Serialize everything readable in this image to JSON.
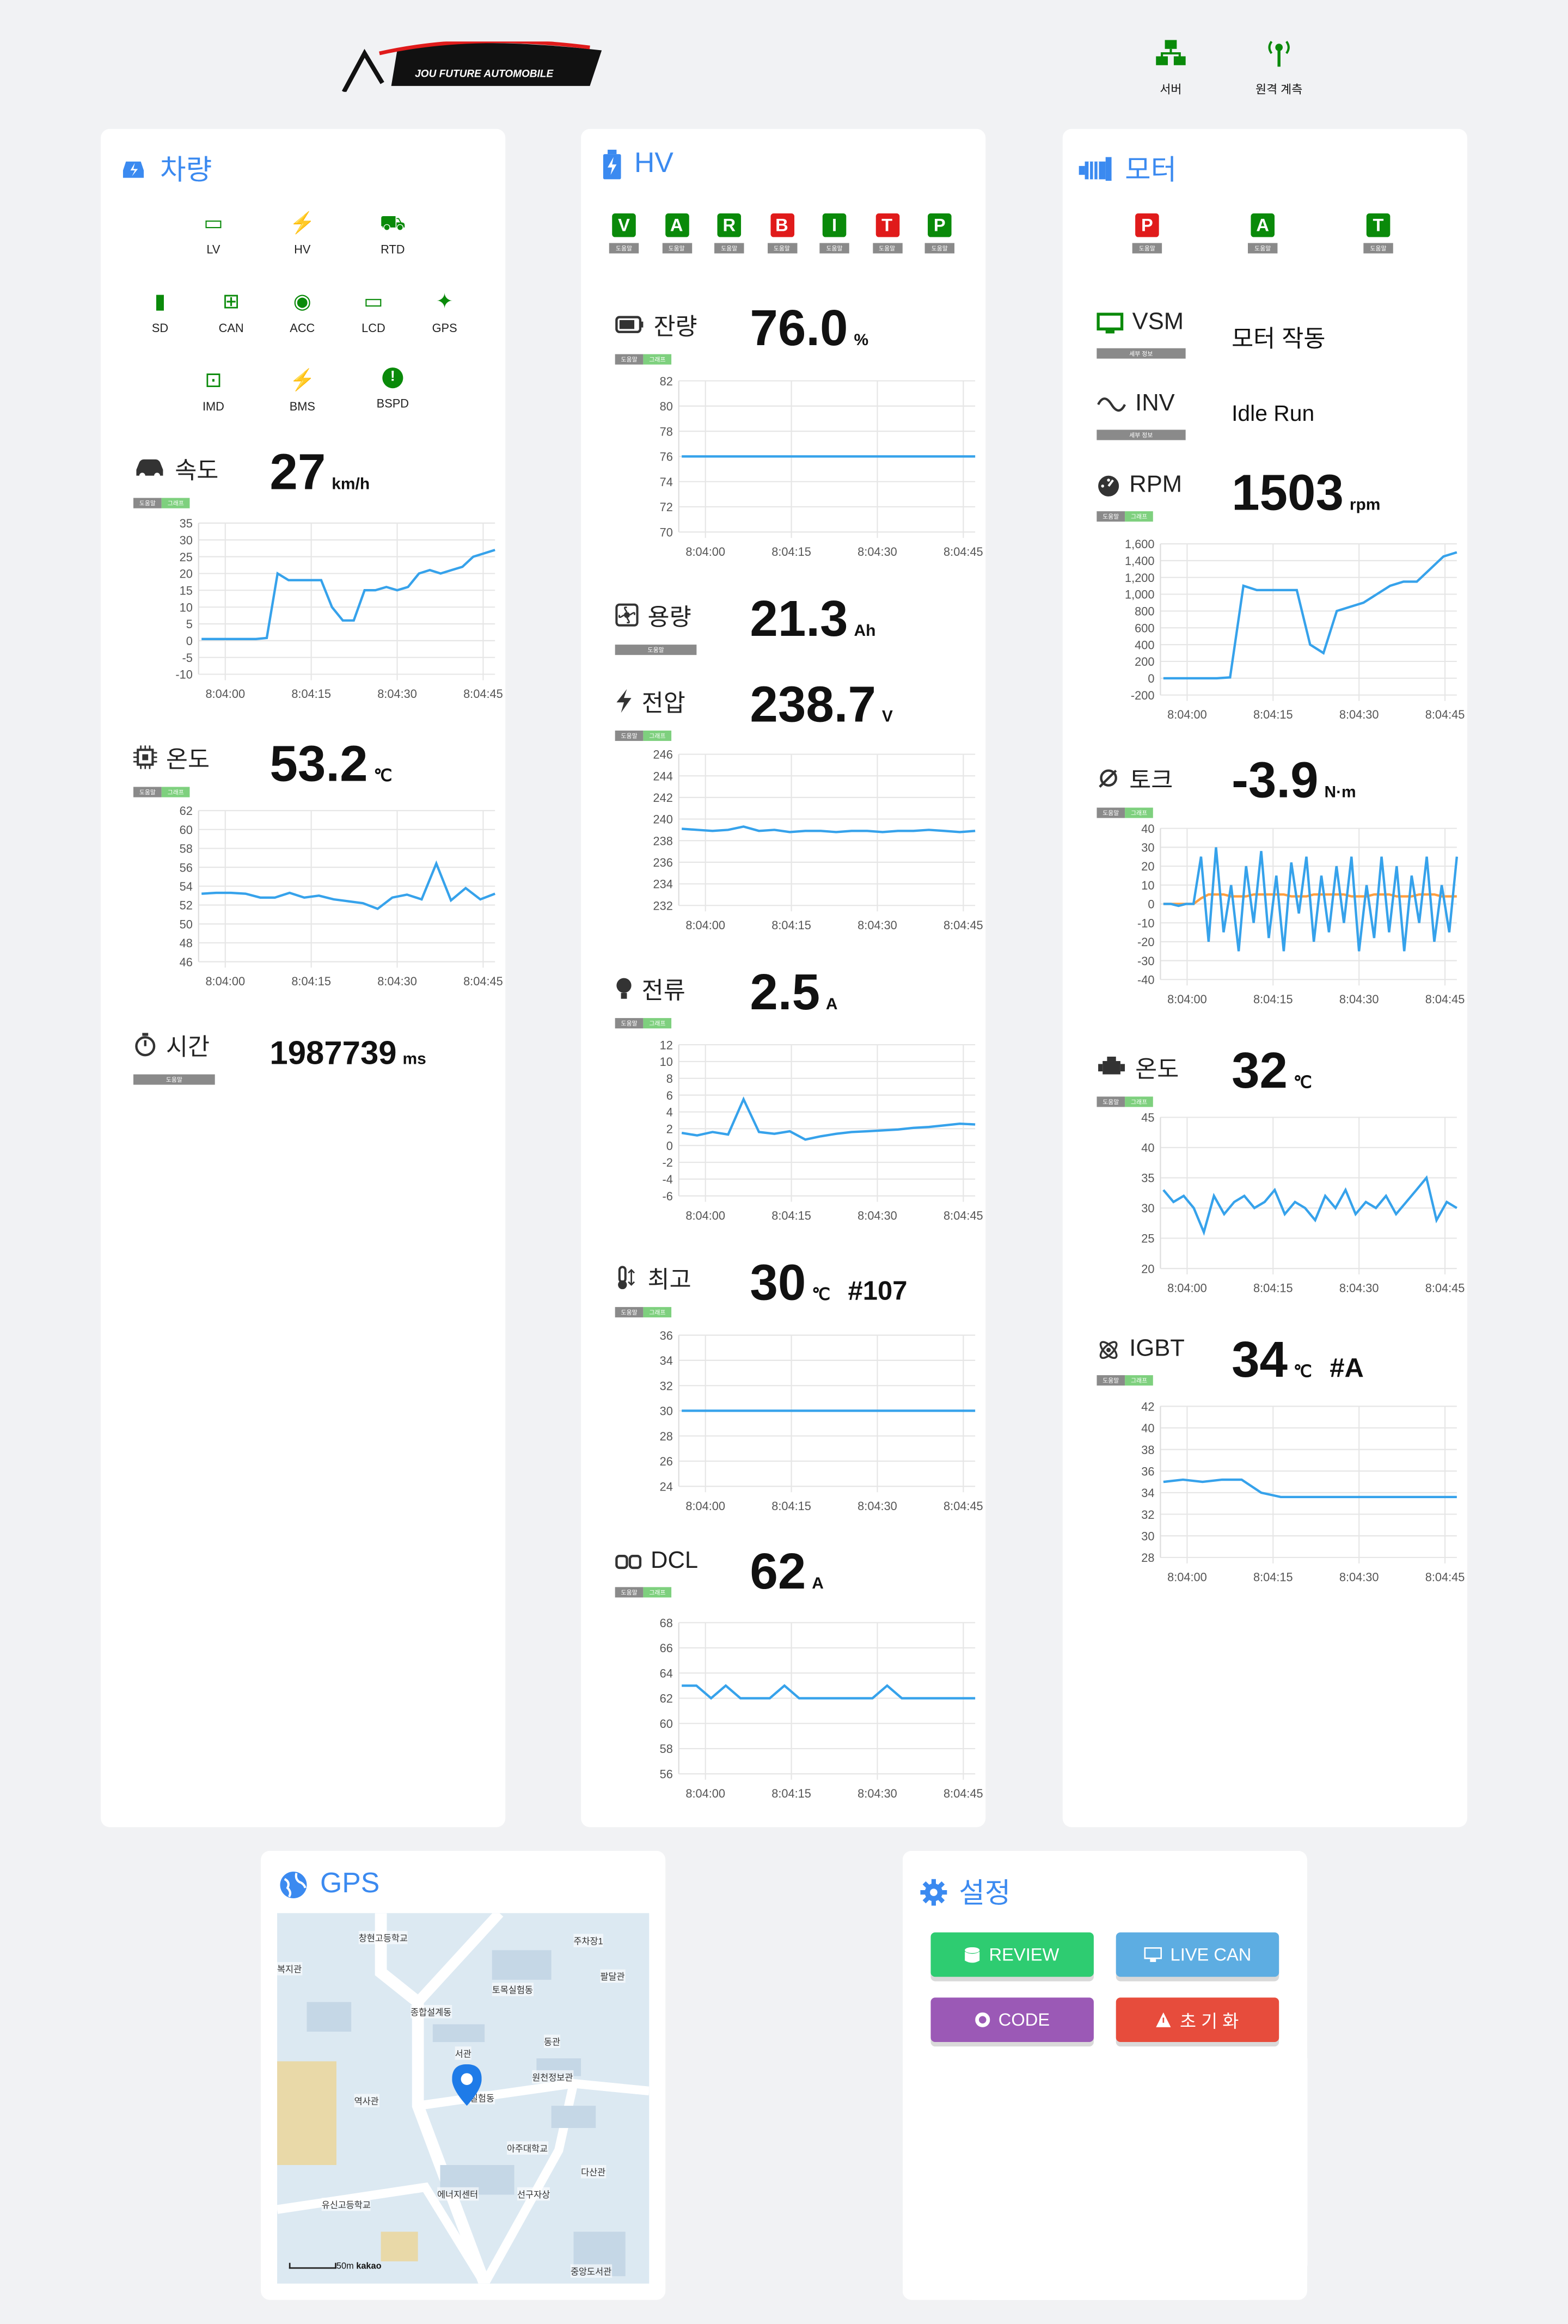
{
  "header": {
    "logo_text": "JOU FUTURE AUTOMOBILE",
    "server_label": "서버",
    "remote_label": "원격 계측"
  },
  "colors": {
    "accent": "#3b8af0",
    "line": "#36a2eb",
    "green": "#0a8a0a",
    "red": "#e01b1b",
    "orange": "#ff9f40"
  },
  "vehicle": {
    "title": "차량",
    "indicators": [
      {
        "label": "LV",
        "icon": "battery-icon"
      },
      {
        "label": "HV",
        "icon": "hv-battery-icon"
      },
      {
        "label": "RTD",
        "icon": "car-alert-icon"
      },
      {
        "label": "SD",
        "icon": "sd-card-icon"
      },
      {
        "label": "CAN",
        "icon": "network-icon"
      },
      {
        "label": "ACC",
        "icon": "compass-icon"
      },
      {
        "label": "LCD",
        "icon": "monitor-icon"
      },
      {
        "label": "GPS",
        "icon": "satellite-icon"
      },
      {
        "label": "IMD",
        "icon": "waveform-icon"
      },
      {
        "label": "BMS",
        "icon": "battery-charging-icon"
      },
      {
        "label": "BSPD",
        "icon": "exclamation-circle-icon"
      }
    ],
    "speed": {
      "label": "속도",
      "value": "27",
      "unit": "km/h"
    },
    "temp": {
      "label": "온도",
      "value": "53.2",
      "unit": "℃"
    },
    "time": {
      "label": "시간",
      "value": "1987739",
      "unit": "ms"
    }
  },
  "hv": {
    "title": "HV",
    "flags": [
      {
        "letter": "V",
        "color": "#0a8a0a"
      },
      {
        "letter": "A",
        "color": "#0a8a0a"
      },
      {
        "letter": "R",
        "color": "#0a8a0a"
      },
      {
        "letter": "B",
        "color": "#e01b1b"
      },
      {
        "letter": "I",
        "color": "#0a8a0a"
      },
      {
        "letter": "T",
        "color": "#e01b1b"
      },
      {
        "letter": "P",
        "color": "#0a8a0a"
      }
    ],
    "soc": {
      "label": "잔량",
      "value": "76.0",
      "unit": "%"
    },
    "capacity": {
      "label": "용량",
      "value": "21.3",
      "unit": "Ah"
    },
    "voltage": {
      "label": "전압",
      "value": "238.7",
      "unit": "V"
    },
    "current": {
      "label": "전류",
      "value": "2.5",
      "unit": "A"
    },
    "max_temp": {
      "label": "최고",
      "value": "30",
      "unit": "℃",
      "extra": "#107"
    },
    "dcl": {
      "label": "DCL",
      "value": "62",
      "unit": "A"
    }
  },
  "motor": {
    "title": "모터",
    "flags": [
      {
        "letter": "P",
        "color": "#e01b1b"
      },
      {
        "letter": "A",
        "color": "#0a8a0a"
      },
      {
        "letter": "T",
        "color": "#0a8a0a"
      }
    ],
    "vsm": {
      "label": "VSM",
      "value": "모터 작동"
    },
    "inv": {
      "label": "INV",
      "value": "Idle Run"
    },
    "rpm": {
      "label": "RPM",
      "value": "1503",
      "unit": "rpm"
    },
    "torque": {
      "label": "토크",
      "value": "-3.9",
      "unit": "N·m"
    },
    "temp": {
      "label": "온도",
      "value": "32",
      "unit": "℃"
    },
    "igbt": {
      "label": "IGBT",
      "value": "34",
      "unit": "℃",
      "extra": "#A"
    }
  },
  "tags": {
    "help": "도움말",
    "graph": "그래프",
    "detail": "세부 정보"
  },
  "gps": {
    "title": "GPS",
    "map_labels": [
      "창현고등학교",
      "주차장1",
      "복지관",
      "팔달관",
      "토목실험동",
      "종합설계동",
      "동관",
      "서관",
      "원천정보관",
      "역사관",
      "실험동",
      "아주대학교",
      "다산관",
      "에너지센터",
      "선구자상",
      "유신고등학교",
      "중앙도서관"
    ],
    "scale": "50m",
    "provider": "kakao"
  },
  "settings": {
    "title": "설정",
    "buttons": [
      {
        "label": "REVIEW",
        "color": "#2ecc71"
      },
      {
        "label": "LIVE CAN",
        "color": "#5dade2"
      },
      {
        "label": "CODE",
        "color": "#9b59b6"
      },
      {
        "label": "초 기 화",
        "color": "#e74c3c"
      }
    ]
  },
  "chart_data": [
    {
      "id": "speed",
      "type": "line",
      "x_ticks": [
        "8:04:00",
        "8:04:15",
        "8:04:30",
        "8:04:45"
      ],
      "ylim": [
        -10,
        35
      ],
      "y_ticks": [
        -10,
        -5,
        0,
        5,
        10,
        15,
        20,
        25,
        30,
        35
      ],
      "series": [
        {
          "values": [
            0.5,
            0.5,
            0.5,
            0.5,
            0.5,
            0.5,
            0.8,
            20,
            18,
            18,
            18,
            18,
            10,
            6,
            6,
            15,
            15,
            16,
            15,
            16,
            20,
            21,
            20,
            21,
            22,
            25,
            26,
            27
          ]
        }
      ]
    },
    {
      "id": "vtemp",
      "type": "line",
      "x_ticks": [
        "8:04:00",
        "8:04:15",
        "8:04:30",
        "8:04:45"
      ],
      "ylim": [
        46,
        62
      ],
      "y_ticks": [
        46,
        48,
        50,
        52,
        54,
        56,
        58,
        60,
        62
      ],
      "series": [
        {
          "values": [
            53.2,
            53.3,
            53.3,
            53.2,
            52.8,
            52.8,
            53.3,
            52.8,
            53.0,
            52.6,
            52.4,
            52.2,
            51.6,
            52.8,
            53.1,
            52.6,
            56.4,
            52.5,
            53.8,
            52.6,
            53.2
          ]
        }
      ]
    },
    {
      "id": "soc",
      "type": "line",
      "x_ticks": [
        "8:04:00",
        "8:04:15",
        "8:04:30",
        "8:04:45"
      ],
      "ylim": [
        70,
        82
      ],
      "y_ticks": [
        70,
        72,
        74,
        76,
        78,
        80,
        82
      ],
      "series": [
        {
          "values": [
            76,
            76,
            76,
            76,
            76,
            76,
            76,
            76
          ]
        }
      ]
    },
    {
      "id": "voltage",
      "type": "line",
      "x_ticks": [
        "8:04:00",
        "8:04:15",
        "8:04:30",
        "8:04:45"
      ],
      "ylim": [
        232,
        246
      ],
      "y_ticks": [
        232,
        234,
        236,
        238,
        240,
        242,
        244,
        246
      ],
      "series": [
        {
          "values": [
            239.1,
            239.0,
            238.9,
            239.0,
            239.3,
            238.9,
            239.0,
            238.8,
            238.9,
            238.9,
            238.8,
            238.9,
            238.9,
            238.8,
            238.9,
            238.9,
            239.0,
            238.9,
            238.8,
            238.9
          ]
        }
      ]
    },
    {
      "id": "current",
      "type": "line",
      "x_ticks": [
        "8:04:00",
        "8:04:15",
        "8:04:30",
        "8:04:45"
      ],
      "ylim": [
        -6,
        12
      ],
      "y_ticks": [
        -6,
        -4,
        -2,
        0,
        2,
        4,
        6,
        8,
        10,
        12
      ],
      "series": [
        {
          "values": [
            1.5,
            1.2,
            1.6,
            1.3,
            5.5,
            1.6,
            1.4,
            1.7,
            0.7,
            1.1,
            1.4,
            1.6,
            1.7,
            1.8,
            1.9,
            2.1,
            2.2,
            2.4,
            2.6,
            2.5
          ]
        }
      ]
    },
    {
      "id": "maxtemp",
      "type": "line",
      "x_ticks": [
        "8:04:00",
        "8:04:15",
        "8:04:30",
        "8:04:45"
      ],
      "ylim": [
        24,
        36
      ],
      "y_ticks": [
        24,
        26,
        28,
        30,
        32,
        34,
        36
      ],
      "series": [
        {
          "values": [
            30,
            30,
            30,
            30,
            30,
            30,
            30,
            30
          ]
        }
      ]
    },
    {
      "id": "dcl",
      "type": "line",
      "x_ticks": [
        "8:04:00",
        "8:04:15",
        "8:04:30",
        "8:04:45"
      ],
      "ylim": [
        56,
        68
      ],
      "y_ticks": [
        56,
        58,
        60,
        62,
        64,
        66,
        68
      ],
      "series": [
        {
          "values": [
            63,
            63,
            62,
            63,
            62,
            62,
            62,
            63,
            62,
            62,
            62,
            62,
            62,
            62,
            63,
            62,
            62,
            62,
            62,
            62,
            62
          ]
        }
      ]
    },
    {
      "id": "rpm",
      "type": "line",
      "x_ticks": [
        "8:04:00",
        "8:04:15",
        "8:04:30",
        "8:04:45"
      ],
      "ylim": [
        -200,
        1600
      ],
      "y_ticks": [
        -200,
        0,
        200,
        400,
        600,
        800,
        1000,
        1200,
        1400,
        1600
      ],
      "series": [
        {
          "values": [
            0,
            0,
            0,
            0,
            0,
            10,
            1100,
            1050,
            1050,
            1050,
            1050,
            400,
            300,
            800,
            850,
            900,
            1000,
            1100,
            1150,
            1150,
            1300,
            1450,
            1500
          ]
        }
      ]
    },
    {
      "id": "torque",
      "type": "line",
      "x_ticks": [
        "8:04:00",
        "8:04:15",
        "8:04:30",
        "8:04:45"
      ],
      "ylim": [
        -40,
        40
      ],
      "y_ticks": [
        -40,
        -30,
        -20,
        -10,
        0,
        10,
        20,
        30,
        40
      ],
      "series": [
        {
          "values": [
            0,
            0,
            -1,
            0,
            0,
            25,
            -20,
            30,
            -15,
            10,
            -25,
            20,
            -10,
            28,
            -18,
            15,
            -25,
            22,
            -5,
            25,
            -20,
            15,
            -15,
            20,
            -10,
            25,
            -25,
            10,
            -18,
            25,
            -15,
            20,
            -25,
            15,
            -10,
            25,
            -20,
            10,
            -15,
            25
          ]
        },
        {
          "values": [
            0,
            0,
            0,
            0,
            0,
            3,
            5,
            5,
            5,
            4,
            4,
            4,
            5,
            5,
            5,
            5,
            5,
            4,
            4,
            4,
            5,
            5,
            5,
            5,
            5,
            4,
            4,
            4,
            5,
            5,
            5,
            4,
            4,
            4,
            5,
            5,
            5,
            4,
            4,
            4
          ]
        }
      ]
    },
    {
      "id": "mtemp",
      "type": "line",
      "x_ticks": [
        "8:04:00",
        "8:04:15",
        "8:04:30",
        "8:04:45"
      ],
      "ylim": [
        20,
        45
      ],
      "y_ticks": [
        20,
        25,
        30,
        35,
        40,
        45
      ],
      "series": [
        {
          "values": [
            33,
            31,
            32,
            30,
            26,
            32,
            29,
            31,
            32,
            30,
            31,
            33,
            29,
            31,
            30,
            28,
            32,
            30,
            33,
            29,
            31,
            30,
            32,
            29,
            31,
            33,
            35,
            28,
            31,
            30
          ]
        }
      ]
    },
    {
      "id": "igbt",
      "type": "line",
      "x_ticks": [
        "8:04:00",
        "8:04:15",
        "8:04:30",
        "8:04:45"
      ],
      "ylim": [
        28,
        42
      ],
      "y_ticks": [
        28,
        30,
        32,
        34,
        36,
        38,
        40,
        42
      ],
      "series": [
        {
          "values": [
            35,
            35.2,
            35.0,
            35.2,
            35.2,
            34.0,
            33.6,
            33.6,
            33.6,
            33.6,
            33.6,
            33.6,
            33.6,
            33.6,
            33.6,
            33.6
          ]
        }
      ]
    }
  ]
}
